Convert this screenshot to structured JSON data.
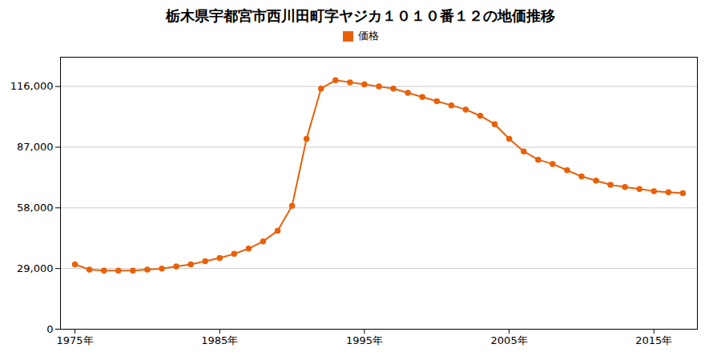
{
  "chart_data": {
    "type": "line",
    "title": "栃木県宇都宮市西川田町字ヤジカ１０１０番１２の地価推移",
    "x": [
      1975,
      1976,
      1977,
      1978,
      1979,
      1980,
      1981,
      1982,
      1983,
      1984,
      1985,
      1986,
      1987,
      1988,
      1989,
      1990,
      1991,
      1992,
      1993,
      1994,
      1995,
      1996,
      1997,
      1998,
      1999,
      2000,
      2001,
      2002,
      2003,
      2004,
      2005,
      2006,
      2007,
      2008,
      2009,
      2010,
      2011,
      2012,
      2013,
      2014,
      2015,
      2016,
      2017
    ],
    "series": [
      {
        "name": "価格",
        "color": "#E8610A",
        "marker": "circle",
        "values": [
          31000,
          28500,
          28000,
          28000,
          28000,
          28500,
          29000,
          30000,
          31000,
          32500,
          34000,
          36000,
          38500,
          42000,
          47000,
          59000,
          91000,
          115000,
          119000,
          118000,
          117000,
          116000,
          115000,
          113000,
          111000,
          109000,
          107000,
          105000,
          102000,
          98000,
          91000,
          85000,
          81000,
          79000,
          76000,
          73000,
          71000,
          69000,
          68000,
          67000,
          66000,
          65500,
          65000
        ]
      }
    ],
    "xlim": [
      1974,
      2018
    ],
    "xticks": [
      {
        "value": 1975,
        "label": "1975年"
      },
      {
        "value": 1985,
        "label": "1985年"
      },
      {
        "value": 1995,
        "label": "1995年"
      },
      {
        "value": 2005,
        "label": "2005年"
      },
      {
        "value": 2015,
        "label": "2015年"
      }
    ],
    "ylim": [
      0,
      130000
    ],
    "yticks": [
      0,
      {
        "value": 29000,
        "label": "29,000"
      },
      {
        "value": 58000,
        "label": "58,000"
      },
      {
        "value": 87000,
        "label": "87,000"
      },
      {
        "value": 116000,
        "label": "116,000"
      }
    ],
    "grid": true,
    "legend": "top"
  }
}
